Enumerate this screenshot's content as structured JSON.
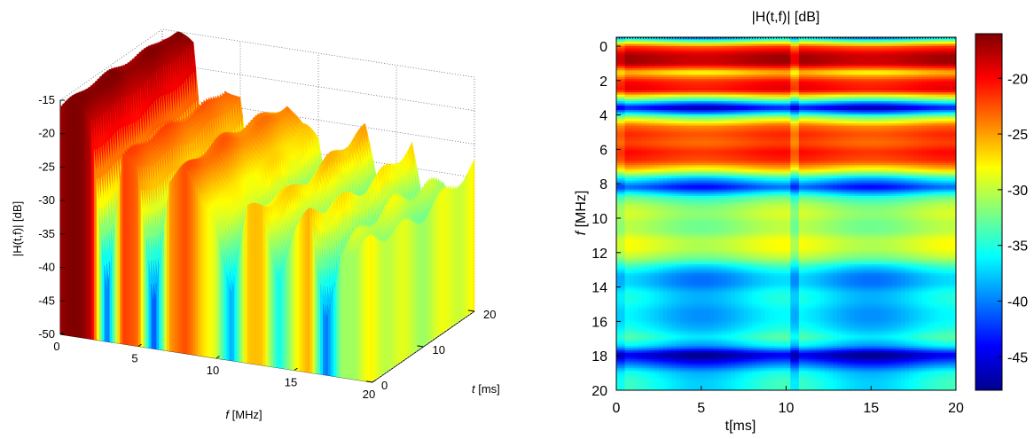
{
  "chart_data": [
    {
      "type": "surface",
      "title": "",
      "xlabel_prefix": "f",
      "xlabel_units": " [MHz]",
      "ylabel_prefix": "t",
      "ylabel_units": " [ms]",
      "zlabel": "|H(t,f)| [dB]",
      "xlim": [
        0,
        20
      ],
      "ylim": [
        0,
        20
      ],
      "zlim": [
        -50,
        -15
      ],
      "xticks": [
        "0",
        "5",
        "10",
        "15",
        "20"
      ],
      "yticks": [
        "0",
        "10",
        "20"
      ],
      "zticks": [
        "-15",
        "-20",
        "-25",
        "-30",
        "-35",
        "-40",
        "-45",
        "-50"
      ],
      "colormap": "jet",
      "grid": true,
      "profile_at_t0": {
        "f": [
          0,
          1,
          2,
          3,
          4,
          5,
          6,
          7,
          8,
          9,
          10,
          11,
          12,
          13,
          14,
          15,
          16,
          17,
          18,
          19,
          20
        ],
        "db": [
          -16,
          -15,
          -17,
          -42,
          -22,
          -24,
          -43,
          -24,
          -23,
          -27,
          -28,
          -40,
          -28,
          -26,
          -35,
          -30,
          -27,
          -41,
          -30,
          -33,
          -29
        ]
      }
    },
    {
      "type": "heatmap",
      "title": "|H(t,f)| [dB]",
      "xlabel": "t[ms]",
      "ylabel_prefix": "f",
      "ylabel_units": " [MHz]",
      "xlim": [
        0,
        20
      ],
      "ylim": [
        0,
        20
      ],
      "xticks": [
        "0",
        "5",
        "10",
        "15",
        "20"
      ],
      "yticks": [
        "0",
        "2",
        "4",
        "6",
        "8",
        "10",
        "12",
        "14",
        "16",
        "18",
        "20"
      ],
      "colorbar_ticks": [
        "-20",
        "-25",
        "-30",
        "-35",
        "-40",
        "-45"
      ],
      "colorbar_range": [
        -48,
        -16
      ],
      "colormap": "jet",
      "frequency_profile_db": {
        "f": [
          0,
          0.5,
          1.0,
          1.5,
          2.0,
          2.5,
          3.0,
          3.5,
          4.0,
          4.5,
          5.0,
          5.5,
          6.0,
          6.5,
          7.0,
          7.5,
          8.0,
          8.5,
          9.0,
          9.5,
          10.0,
          10.5,
          11.0,
          11.5,
          12.0,
          12.5,
          13.0,
          13.5,
          14.0,
          14.5,
          15.0,
          15.5,
          16.0,
          16.5,
          17.0,
          17.5,
          18.0,
          18.5,
          19.0,
          19.5,
          20.0
        ],
        "db": [
          -38,
          -22,
          -17,
          -17,
          -26,
          -20,
          -19,
          -31,
          -44,
          -31,
          -23,
          -21,
          -22,
          -20,
          -21,
          -26,
          -35,
          -41,
          -33,
          -30,
          -29,
          -30,
          -30,
          -28,
          -28,
          -30,
          -34,
          -37,
          -37,
          -35,
          -35,
          -36,
          -36,
          -35,
          -33,
          -36,
          -45,
          -40,
          -35,
          -34,
          -34
        ]
      }
    }
  ]
}
